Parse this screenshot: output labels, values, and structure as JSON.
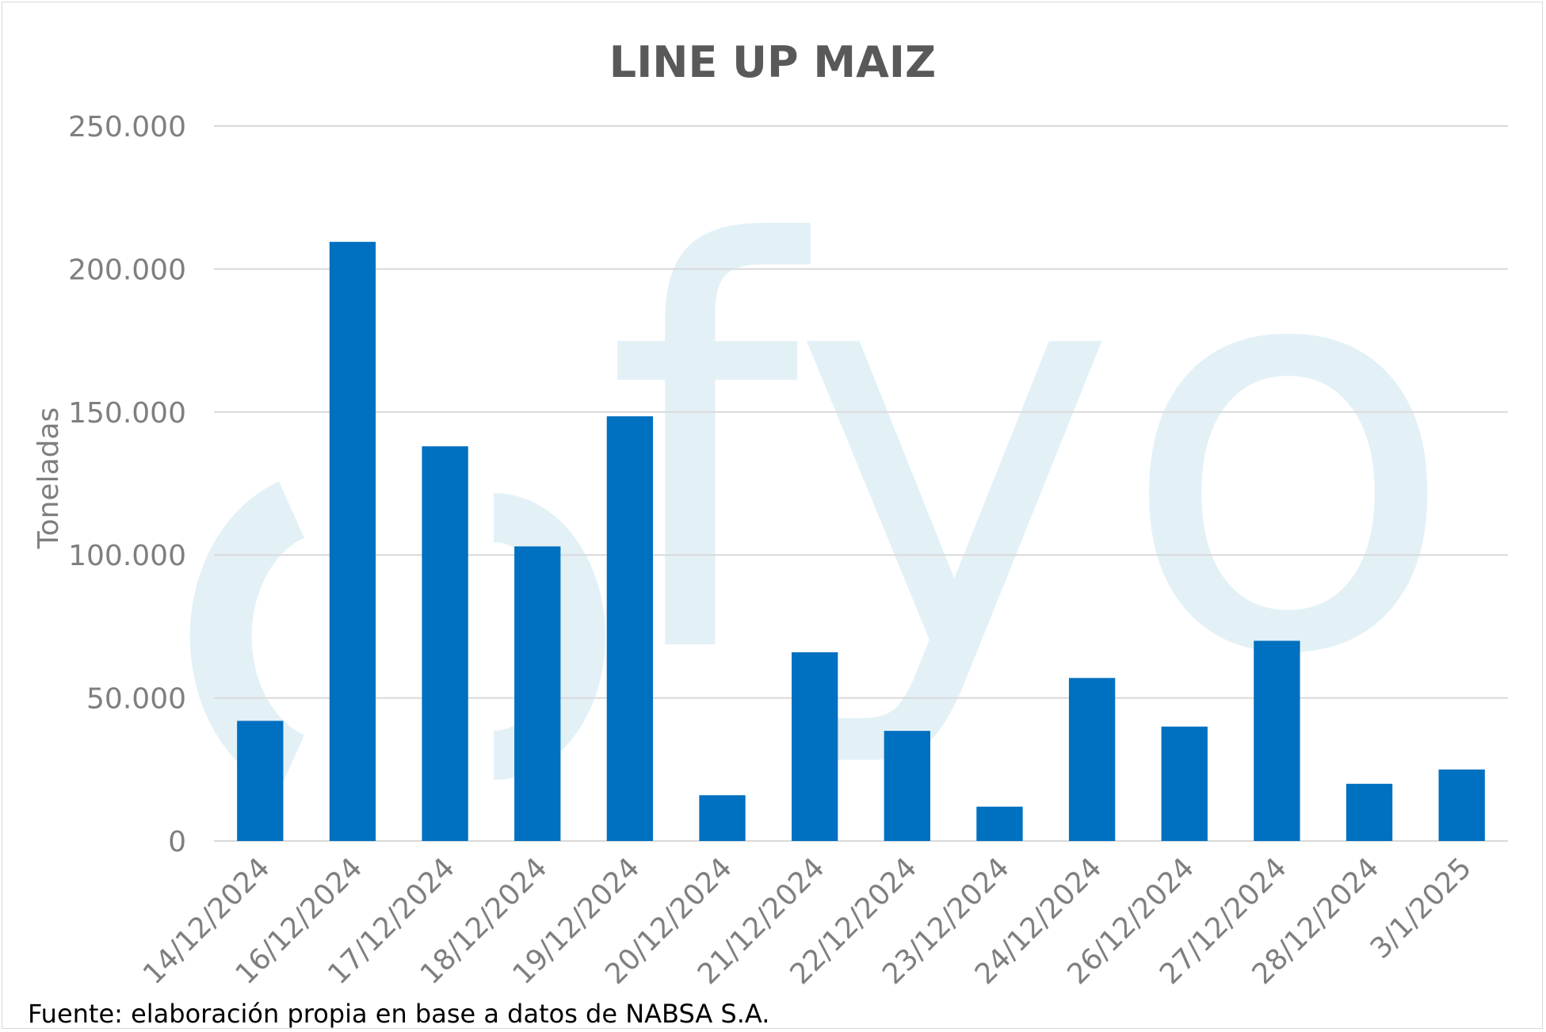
{
  "chart_data": {
    "type": "bar",
    "title": "LINE UP MAIZ",
    "xlabel": "",
    "ylabel": "Toneladas",
    "ylim": [
      0,
      250000
    ],
    "yticks": [
      0,
      50000,
      100000,
      150000,
      200000,
      250000
    ],
    "ytick_labels": [
      "0",
      "50.000",
      "100.000",
      "150.000",
      "200.000",
      "250.000"
    ],
    "categories": [
      "14/12/2024",
      "16/12/2024",
      "17/12/2024",
      "18/12/2024",
      "19/12/2024",
      "20/12/2024",
      "21/12/2024",
      "22/12/2024",
      "23/12/2024",
      "24/12/2024",
      "26/12/2024",
      "27/12/2024",
      "28/12/2024",
      "3/1/2025"
    ],
    "values": [
      42000,
      209500,
      138000,
      103000,
      148500,
      16000,
      66000,
      38500,
      12000,
      57000,
      40000,
      70000,
      20000,
      25000
    ],
    "grid": true,
    "legend": "none",
    "bar_color": "#0070c0",
    "watermark_color": "#e3f1f7",
    "watermark_text": "fyo"
  },
  "source_note": "Fuente: elaboración propia en base a datos de NABSA S.A."
}
